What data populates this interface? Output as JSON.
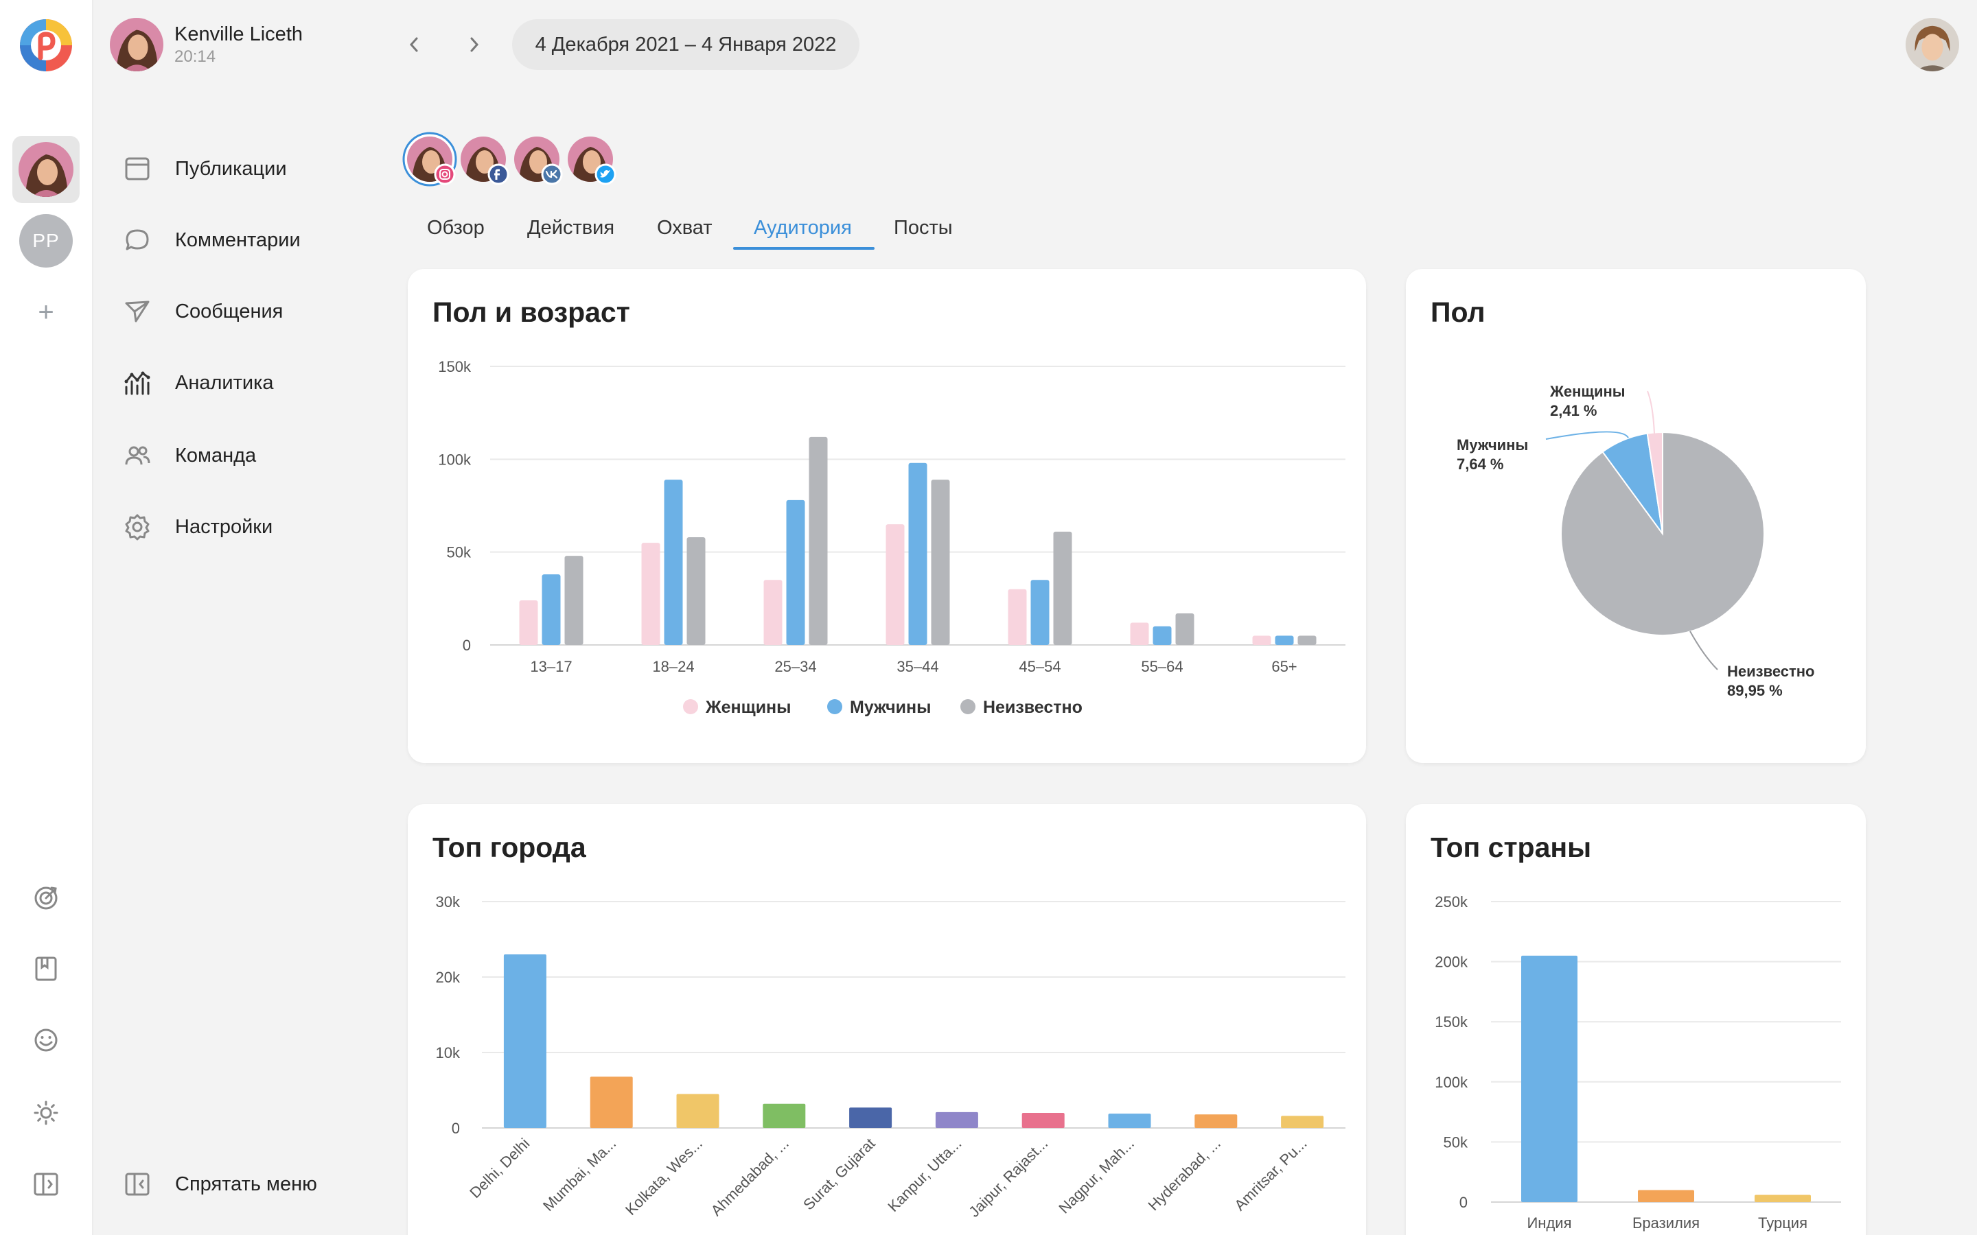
{
  "header": {
    "user_name": "Kenville Liceth",
    "user_time": "20:14",
    "date_range": "4 Декабря 2021 – 4 Января 2022"
  },
  "rail": {
    "account_initials": "PP",
    "add_label": "+"
  },
  "menu": {
    "items": [
      {
        "label": "Публикации",
        "icon": "calendar-icon"
      },
      {
        "label": "Комментарии",
        "icon": "comment-icon"
      },
      {
        "label": "Сообщения",
        "icon": "paper-plane-icon"
      },
      {
        "label": "Аналитика",
        "icon": "analytics-icon"
      },
      {
        "label": "Команда",
        "icon": "team-icon"
      },
      {
        "label": "Настройки",
        "icon": "gear-icon"
      }
    ],
    "hide_label": "Спрятать меню"
  },
  "channels": [
    "instagram",
    "facebook",
    "vk",
    "twitter"
  ],
  "tabs": [
    {
      "label": "Обзор"
    },
    {
      "label": "Действия"
    },
    {
      "label": "Охват"
    },
    {
      "label": "Аудитория"
    },
    {
      "label": "Посты"
    }
  ],
  "active_tab": 3,
  "colors": {
    "accent": "#3b8fd9",
    "women": "#f8d4de",
    "men": "#6cb1e6",
    "unknown": "#b4b6ba"
  },
  "cards": {
    "age_gender": {
      "title": "Пол и возраст"
    },
    "gender": {
      "title": "Пол"
    },
    "top_cities": {
      "title": "Топ города"
    },
    "top_countries": {
      "title": "Топ страны"
    }
  },
  "chart_data": [
    {
      "type": "bar",
      "title": "Пол и возраст",
      "categories": [
        "13–17",
        "18–24",
        "25–34",
        "35–44",
        "45–54",
        "55–64",
        "65+"
      ],
      "series": [
        {
          "name": "Женщины",
          "values": [
            24000,
            55000,
            35000,
            65000,
            30000,
            12000,
            5000
          ]
        },
        {
          "name": "Мужчины",
          "values": [
            38000,
            89000,
            78000,
            98000,
            35000,
            10000,
            5000
          ]
        },
        {
          "name": "Неизвестно",
          "values": [
            48000,
            58000,
            112000,
            89000,
            61000,
            17000,
            5000
          ]
        }
      ],
      "y_ticks": [
        "0",
        "50k",
        "100k",
        "150k"
      ],
      "ylim": [
        0,
        150000
      ],
      "legend": "bottom",
      "grid": true
    },
    {
      "type": "pie",
      "title": "Пол",
      "slices": [
        {
          "name": "Женщины",
          "value": 2.41,
          "label": "2,41 %"
        },
        {
          "name": "Мужчины",
          "value": 7.64,
          "label": "7,64 %"
        },
        {
          "name": "Неизвестно",
          "value": 89.95,
          "label": "89,95 %"
        }
      ]
    },
    {
      "type": "bar",
      "title": "Топ города",
      "categories": [
        "Delhi, Delhi",
        "Mumbai, Ma...",
        "Kolkata, Wes...",
        "Ahmedabad, ...",
        "Surat, Gujarat",
        "Kanpur, Utta...",
        "Jaipur, Rajast...",
        "Nagpur, Mah...",
        "Hyderabad, ...",
        "Amritsar, Pu..."
      ],
      "values": [
        23000,
        6800,
        4500,
        3200,
        2700,
        2100,
        2000,
        1900,
        1800,
        1600
      ],
      "bar_colors": [
        "#6cb1e6",
        "#f3a457",
        "#f0c668",
        "#7fbe63",
        "#4a66a8",
        "#8f86c9",
        "#e8718d",
        "#6cb1e6",
        "#f3a457",
        "#f0c668"
      ],
      "y_ticks": [
        "0",
        "10k",
        "20k",
        "30k"
      ],
      "ylim": [
        0,
        30000
      ],
      "grid": true
    },
    {
      "type": "bar",
      "title": "Топ страны",
      "categories": [
        "Индия",
        "Бразилия",
        "Турция"
      ],
      "values": [
        205000,
        10000,
        6000
      ],
      "bar_colors": [
        "#6cb1e6",
        "#f3a457",
        "#f0c668"
      ],
      "y_ticks": [
        "0",
        "50k",
        "100k",
        "150k",
        "200k",
        "250k"
      ],
      "ylim": [
        0,
        250000
      ],
      "grid": true
    }
  ]
}
